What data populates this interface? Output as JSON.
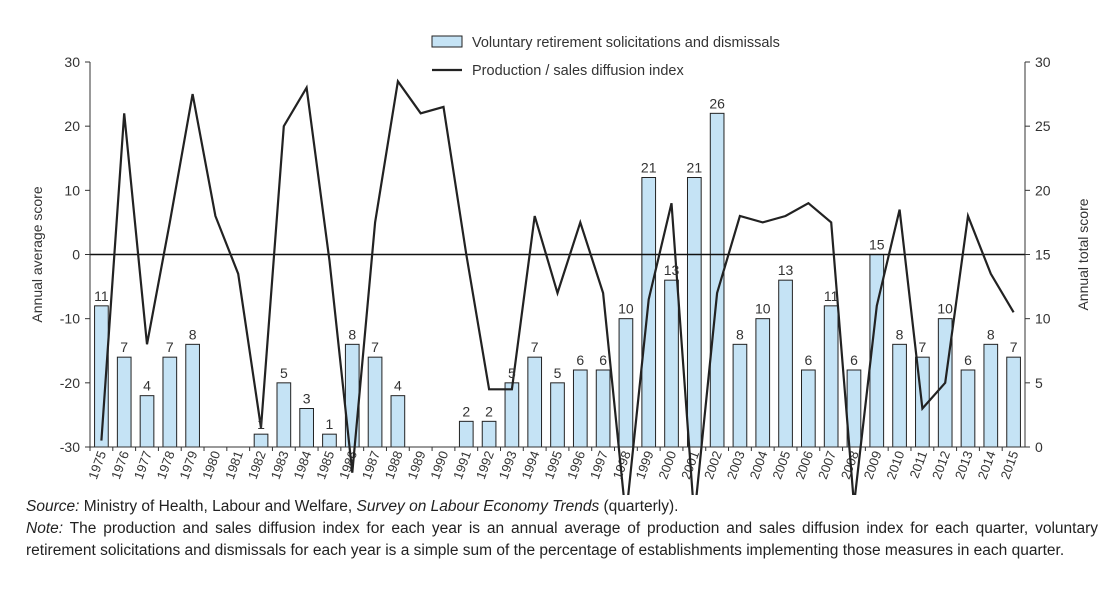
{
  "chart_data": {
    "type": "bar+line",
    "categories": [
      "1975",
      "1976",
      "1977",
      "1978",
      "1979",
      "1980",
      "1981",
      "1982",
      "1983",
      "1984",
      "1985",
      "1986",
      "1987",
      "1988",
      "1989",
      "1990",
      "1991",
      "1992",
      "1993",
      "1994",
      "1995",
      "1996",
      "1997",
      "1998",
      "1999",
      "2000",
      "2001",
      "2002",
      "2003",
      "2004",
      "2005",
      "2006",
      "2007",
      "2008",
      "2009",
      "2010",
      "2011",
      "2012",
      "2013",
      "2014",
      "2015"
    ],
    "series": [
      {
        "name": "Voluntary retirement solicitations and dismissals",
        "kind": "bar",
        "axis": "right",
        "color": "#c5e3f5",
        "values": [
          11,
          7,
          4,
          7,
          8,
          null,
          null,
          1,
          5,
          3,
          1,
          8,
          7,
          4,
          null,
          null,
          2,
          2,
          5,
          7,
          5,
          6,
          6,
          10,
          21,
          13,
          21,
          26,
          8,
          10,
          13,
          6,
          11,
          6,
          15,
          8,
          7,
          10,
          6,
          8,
          7
        ]
      },
      {
        "name": "Production / sales diffusion index",
        "kind": "line",
        "axis": "left",
        "color": "#222222",
        "values": [
          -29,
          22,
          -14,
          5,
          25,
          6,
          -3,
          -27,
          20,
          26,
          -1,
          -34,
          5,
          27,
          22,
          23,
          0,
          -21,
          -21,
          6,
          -6,
          5,
          -6,
          -41,
          -7,
          8,
          -41,
          -6,
          6,
          5,
          6,
          8,
          5,
          -39,
          -8,
          7,
          -24,
          -20,
          6,
          -3,
          -9
        ]
      }
    ],
    "y_left": {
      "label": "Annual average score",
      "range": [
        -30,
        30
      ],
      "ticks": [
        "30",
        "20",
        "10",
        "0",
        "-10",
        "-20",
        "-30"
      ]
    },
    "y_right": {
      "label": "Annual total score",
      "range": [
        0,
        30
      ],
      "ticks": [
        "30",
        "25",
        "20",
        "15",
        "10",
        "5",
        "0"
      ]
    },
    "legend_position": "top-center",
    "grid": false
  },
  "footnotes": {
    "source_label": "Source:",
    "source_text": " Ministry of Health, Labour and Welfare, ",
    "source_title": "Survey on Labour Economy Trends",
    "source_tail": " (quarterly).",
    "note_label": "Note:",
    "note_text": " The production and sales diffusion index for each year is an annual average of production and sales diffusion index for each quarter, voluntary retirement solicitations and dismissals for each year is a simple sum of the percentage of establishments implementing those measures in each quarter."
  }
}
